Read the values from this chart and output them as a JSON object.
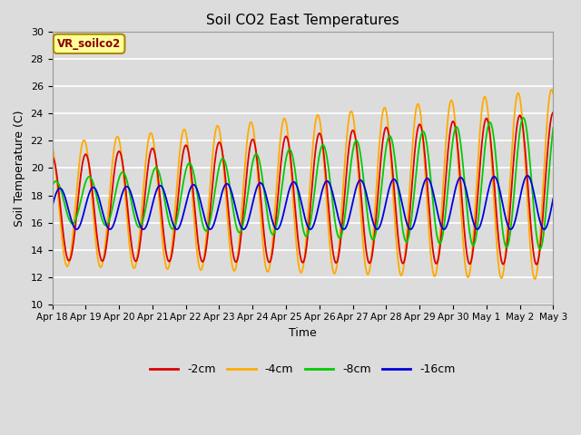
{
  "title": "Soil CO2 East Temperatures",
  "xlabel": "Time",
  "ylabel": "Soil Temperature (C)",
  "ylim": [
    10,
    30
  ],
  "yticks": [
    10,
    12,
    14,
    16,
    18,
    20,
    22,
    24,
    26,
    28,
    30
  ],
  "xtick_labels": [
    "Apr 18",
    "Apr 19",
    "Apr 20",
    "Apr 21",
    "Apr 22",
    "Apr 23",
    "Apr 24",
    "Apr 25",
    "Apr 26",
    "Apr 27",
    "Apr 28",
    "Apr 29",
    "Apr 30",
    "May 1",
    "May 2",
    "May 3"
  ],
  "bg_color": "#dcdcdc",
  "plot_bg_color": "#dcdcdc",
  "grid_color": "white",
  "series": [
    {
      "label": "-2cm",
      "color": "#dd0000",
      "lw": 1.3
    },
    {
      "label": "-4cm",
      "color": "#ffaa00",
      "lw": 1.3
    },
    {
      "label": "-8cm",
      "color": "#00cc00",
      "lw": 1.3
    },
    {
      "label": "-16cm",
      "color": "#0000dd",
      "lw": 1.3
    }
  ],
  "annotation_text": "VR_soilco2",
  "annotation_color": "#880000",
  "annotation_bg": "#ffff99",
  "annotation_border": "#aa8800"
}
